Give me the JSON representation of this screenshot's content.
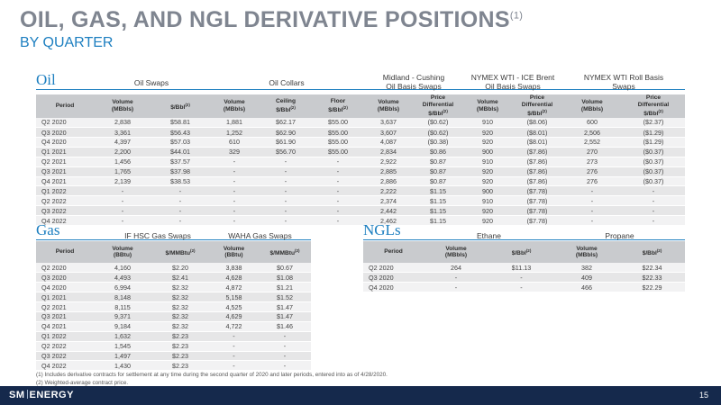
{
  "header": {
    "title": "OIL, GAS, AND NGL DERIVATIVE POSITIONS",
    "title_note": "(1)",
    "subtitle": "BY QUARTER"
  },
  "oil": {
    "label": "Oil",
    "groups": {
      "swaps": "Oil Swaps",
      "collars": "Oil Collars",
      "midland_l1": "Midland - Cushing",
      "midland_l2": "Oil Basis Swaps",
      "brent_l1": "NYMEX WTI - ICE Brent",
      "brent_l2": "Oil Basis Swaps",
      "roll_l1": "NYMEX WTI Roll Basis",
      "roll_l2": "Swaps"
    },
    "headers": {
      "period": "Period",
      "vol_mbbls_a": "Volume",
      "vol_mbbls_b": "(MBbls)",
      "price_bbl": "$/Bbl",
      "note2": "(2)",
      "ceiling_a": "Ceiling",
      "ceiling_b": "$/Bbl",
      "floor_a": "Floor",
      "floor_b": "$/Bbl",
      "diff_a": "Price",
      "diff_b": "Differential",
      "diff_c": "$/Bbl"
    },
    "rows": [
      [
        "Q2 2020",
        "2,838",
        "$58.81",
        "1,881",
        "$62.17",
        "$55.00",
        "3,637",
        "($0.62)",
        "910",
        "($8.06)",
        "600",
        "($2.37)"
      ],
      [
        "Q3 2020",
        "3,361",
        "$56.43",
        "1,252",
        "$62.90",
        "$55.00",
        "3,607",
        "($0.62)",
        "920",
        "($8.01)",
        "2,506",
        "($1.29)"
      ],
      [
        "Q4 2020",
        "4,397",
        "$57.03",
        "610",
        "$61.90",
        "$55.00",
        "4,087",
        "($0.38)",
        "920",
        "($8.01)",
        "2,552",
        "($1.29)"
      ],
      [
        "Q1 2021",
        "2,200",
        "$44.01",
        "329",
        "$56.70",
        "$55.00",
        "2,834",
        "$0.86",
        "900",
        "($7.86)",
        "270",
        "($0.37)"
      ],
      [
        "Q2 2021",
        "1,456",
        "$37.57",
        "-",
        "-",
        "-",
        "2,922",
        "$0.87",
        "910",
        "($7.86)",
        "273",
        "($0.37)"
      ],
      [
        "Q3 2021",
        "1,765",
        "$37.98",
        "-",
        "-",
        "-",
        "2,885",
        "$0.87",
        "920",
        "($7.86)",
        "276",
        "($0.37)"
      ],
      [
        "Q4 2021",
        "2,139",
        "$38.53",
        "-",
        "-",
        "-",
        "2,886",
        "$0.87",
        "920",
        "($7.86)",
        "276",
        "($0.37)"
      ],
      [
        "Q1 2022",
        "-",
        "-",
        "-",
        "-",
        "-",
        "2,222",
        "$1.15",
        "900",
        "($7.78)",
        "-",
        "-"
      ],
      [
        "Q2 2022",
        "-",
        "-",
        "-",
        "-",
        "-",
        "2,374",
        "$1.15",
        "910",
        "($7.78)",
        "-",
        "-"
      ],
      [
        "Q3 2022",
        "-",
        "-",
        "-",
        "-",
        "-",
        "2,442",
        "$1.15",
        "920",
        "($7.78)",
        "-",
        "-"
      ],
      [
        "Q4 2022",
        "-",
        "-",
        "-",
        "-",
        "-",
        "2,462",
        "$1.15",
        "920",
        "($7.78)",
        "-",
        "-"
      ]
    ]
  },
  "gas": {
    "label": "Gas",
    "groups": {
      "ifhsc": "IF HSC Gas Swaps",
      "waha": "WAHA Gas Swaps"
    },
    "headers": {
      "period": "Period",
      "vol_a": "Volume",
      "vol_b": "(BBtu)",
      "price": "$/MMBtu",
      "note2": "(2)"
    },
    "rows": [
      [
        "Q2 2020",
        "4,160",
        "$2.20",
        "3,838",
        "$0.67"
      ],
      [
        "Q3 2020",
        "4,493",
        "$2.41",
        "4,628",
        "$1.08"
      ],
      [
        "Q4 2020",
        "6,994",
        "$2.32",
        "4,872",
        "$1.21"
      ],
      [
        "Q1 2021",
        "8,148",
        "$2.32",
        "5,158",
        "$1.52"
      ],
      [
        "Q2 2021",
        "8,115",
        "$2.32",
        "4,525",
        "$1.47"
      ],
      [
        "Q3 2021",
        "9,371",
        "$2.32",
        "4,629",
        "$1.47"
      ],
      [
        "Q4 2021",
        "9,184",
        "$2.32",
        "4,722",
        "$1.46"
      ],
      [
        "Q1 2022",
        "1,632",
        "$2.23",
        "-",
        "-"
      ],
      [
        "Q2 2022",
        "1,545",
        "$2.23",
        "-",
        "-"
      ],
      [
        "Q3 2022",
        "1,497",
        "$2.23",
        "-",
        "-"
      ],
      [
        "Q4 2022",
        "1,430",
        "$2.23",
        "-",
        "-"
      ]
    ]
  },
  "ngls": {
    "label": "NGLs",
    "groups": {
      "ethane": "Ethane",
      "propane": "Propane"
    },
    "headers": {
      "period": "Period",
      "vol_a": "Volume",
      "vol_b": "(MBbls)",
      "price": "$/Bbl",
      "note2": "(2)"
    },
    "rows": [
      [
        "Q2 2020",
        "264",
        "$11.13",
        "382",
        "$22.34"
      ],
      [
        "Q3 2020",
        "-",
        "-",
        "409",
        "$22.33"
      ],
      [
        "Q4 2020",
        "-",
        "-",
        "466",
        "$22.29"
      ]
    ]
  },
  "footnotes": [
    "(1)    Includes derivative contracts for settlement at any time during the second quarter of 2020 and later periods, entered into as of 4/28/2020.",
    "(2)    Weighted-average contract price."
  ],
  "footer": {
    "logo_left": "SM",
    "logo_right": "ENERGY",
    "page_number": "15",
    "colors": {
      "bar": "#15294c",
      "accent": "#1d7fc0",
      "title_gray": "#7f8590"
    }
  }
}
